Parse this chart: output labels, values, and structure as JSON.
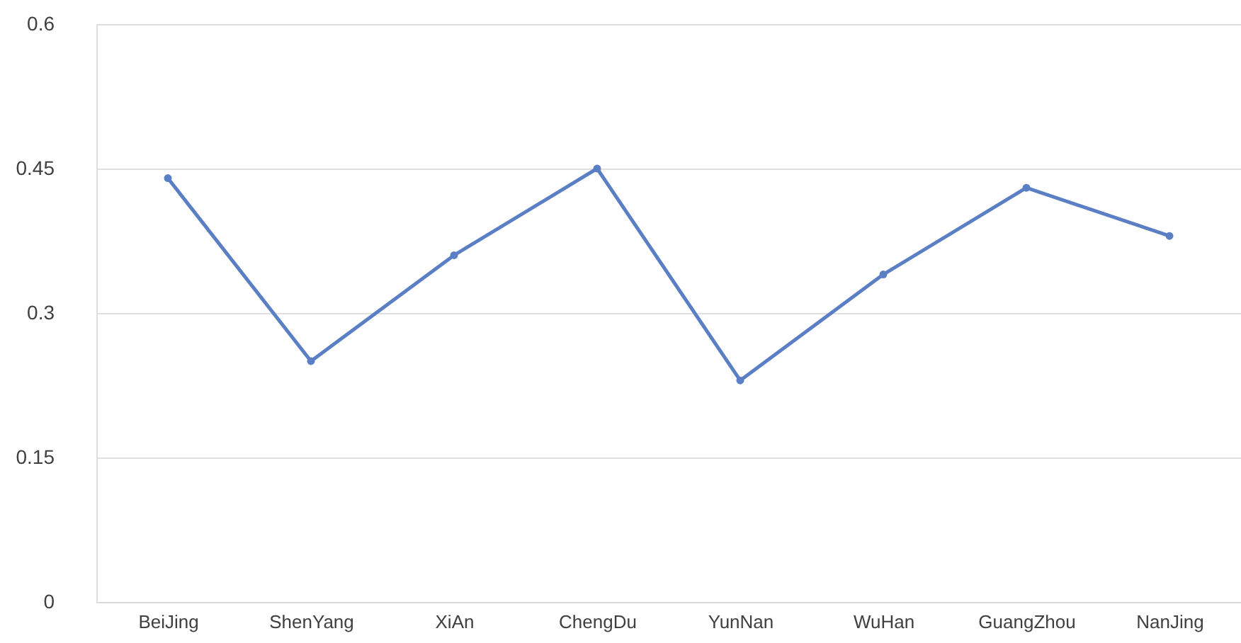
{
  "chart_data": {
    "type": "line",
    "categories": [
      "BeiJing",
      "ShenYang",
      "XiAn",
      "ChengDu",
      "YunNan",
      "WuHan",
      "GuangZhou",
      "NanJing"
    ],
    "series": [
      {
        "color": "#5b7fc4",
        "values": [
          0.44,
          0.25,
          0.36,
          0.45,
          0.23,
          0.34,
          0.43,
          0.38
        ]
      }
    ],
    "ylim": [
      0,
      0.6
    ],
    "yticks": [
      0,
      0.15,
      0.3,
      0.45,
      0.6
    ],
    "grid": "y",
    "marker": "circle",
    "line_style": "solid",
    "legend": false
  }
}
